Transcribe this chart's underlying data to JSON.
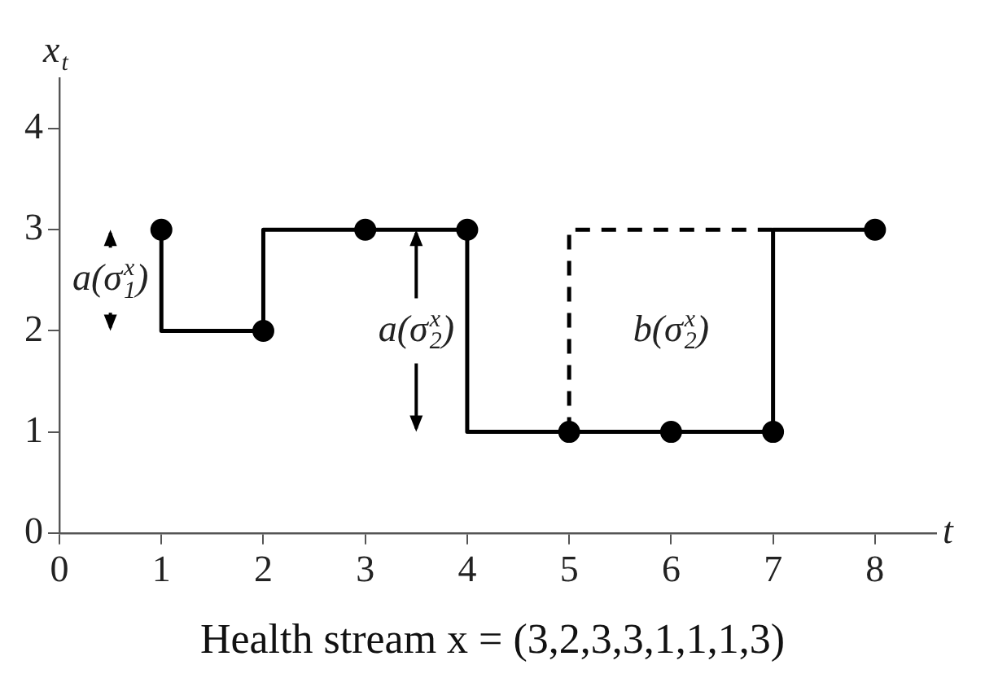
{
  "chart_data": {
    "type": "step",
    "ylabel": "x$_{t}$",
    "xlabel": "t",
    "xlim": [
      0,
      8.6
    ],
    "ylim": [
      0,
      4.5
    ],
    "xticks": [
      0,
      1,
      2,
      3,
      4,
      5,
      6,
      7,
      8
    ],
    "yticks": [
      0,
      1,
      2,
      3,
      4
    ],
    "x": [
      1,
      2,
      3,
      4,
      5,
      6,
      7,
      8
    ],
    "series": [
      {
        "color": "#000000",
        "marker": "circle",
        "line_style": "solid",
        "values": [
          3,
          2,
          3,
          3,
          1,
          1,
          1,
          3
        ]
      },
      {
        "type": "step",
        "color": "#000000",
        "marker": "none",
        "line_style": "dashed",
        "x": [
          5,
          7
        ],
        "values": [
          1,
          3
        ]
      }
    ],
    "legend": false,
    "annotations": [
      "a(σ$_{1}$$^{x}$)",
      {
        "text": "a(σ$_{2}$$^{x}$)",
        "x": 3.5,
        "y": 3
      },
      "b(σ$_{2}$$^{x}$)",
      "Health stream x = (3,2,3,3,1,1,1,3)"
    ]
  }
}
